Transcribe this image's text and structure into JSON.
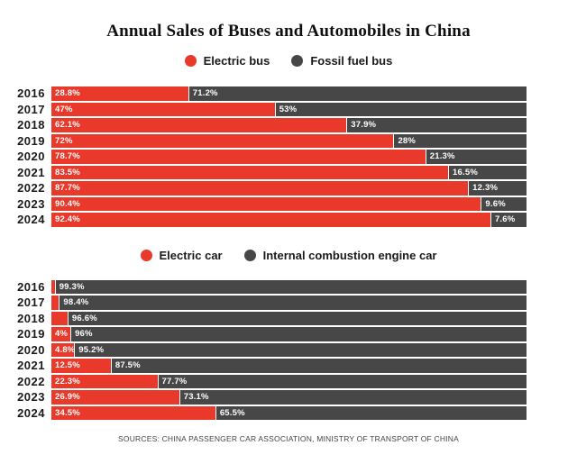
{
  "title": "Annual Sales of Buses and Automobiles in China",
  "footer": "SOURCES: CHINA PASSENGER CAR ASSOCIATION, MINISTRY OF TRANSPORT OF CHINA",
  "colors": {
    "electric_red": "#e8392b",
    "fossil_gray": "#474747",
    "background": "#ffffff",
    "text": "#1a1a1a"
  },
  "chart_data": [
    {
      "type": "bar",
      "stacked": true,
      "orientation": "horizontal",
      "unit": "%",
      "xlim": [
        0,
        100
      ],
      "legend_position": "top-center",
      "grid": false,
      "categories": [
        "2016",
        "2017",
        "2018",
        "2019",
        "2020",
        "2021",
        "2022",
        "2023",
        "2024"
      ],
      "series": [
        {
          "name": "Electric bus",
          "color": "#e8392b",
          "values": [
            28.8,
            47,
            62.1,
            72,
            78.7,
            83.5,
            87.7,
            90.4,
            92.4
          ],
          "labels": [
            "28.8%",
            "47%",
            "62.1%",
            "72%",
            "78.7%",
            "83.5%",
            "87.7%",
            "90.4%",
            "92.4%"
          ]
        },
        {
          "name": "Fossil fuel bus",
          "color": "#474747",
          "values": [
            71.2,
            53,
            37.9,
            28,
            21.3,
            16.5,
            12.3,
            9.6,
            7.6
          ],
          "labels": [
            "71.2%",
            "53%",
            "37.9%",
            "28%",
            "21.3%",
            "16.5%",
            "12.3%",
            "9.6%",
            "7.6%"
          ]
        }
      ]
    },
    {
      "type": "bar",
      "stacked": true,
      "orientation": "horizontal",
      "unit": "%",
      "xlim": [
        0,
        100
      ],
      "legend_position": "top-center",
      "grid": false,
      "categories": [
        "2016",
        "2017",
        "2018",
        "2019",
        "2020",
        "2021",
        "2022",
        "2023",
        "2024"
      ],
      "series": [
        {
          "name": "Electric car",
          "color": "#e8392b",
          "values": [
            0.7,
            1.6,
            3.4,
            4,
            4.8,
            12.5,
            22.3,
            26.9,
            34.5
          ],
          "labels": [
            "",
            "",
            "",
            "4%",
            "4.8%",
            "12.5%",
            "22.3%",
            "26.9%",
            "34.5%"
          ]
        },
        {
          "name": "Internal combustion engine car",
          "color": "#474747",
          "values": [
            99.3,
            98.4,
            96.6,
            96,
            95.2,
            87.5,
            77.7,
            73.1,
            65.5
          ],
          "labels": [
            "99.3%",
            "98.4%",
            "96.6%",
            "96%",
            "95.2%",
            "87.5%",
            "77.7%",
            "73.1%",
            "65.5%"
          ]
        }
      ]
    }
  ]
}
